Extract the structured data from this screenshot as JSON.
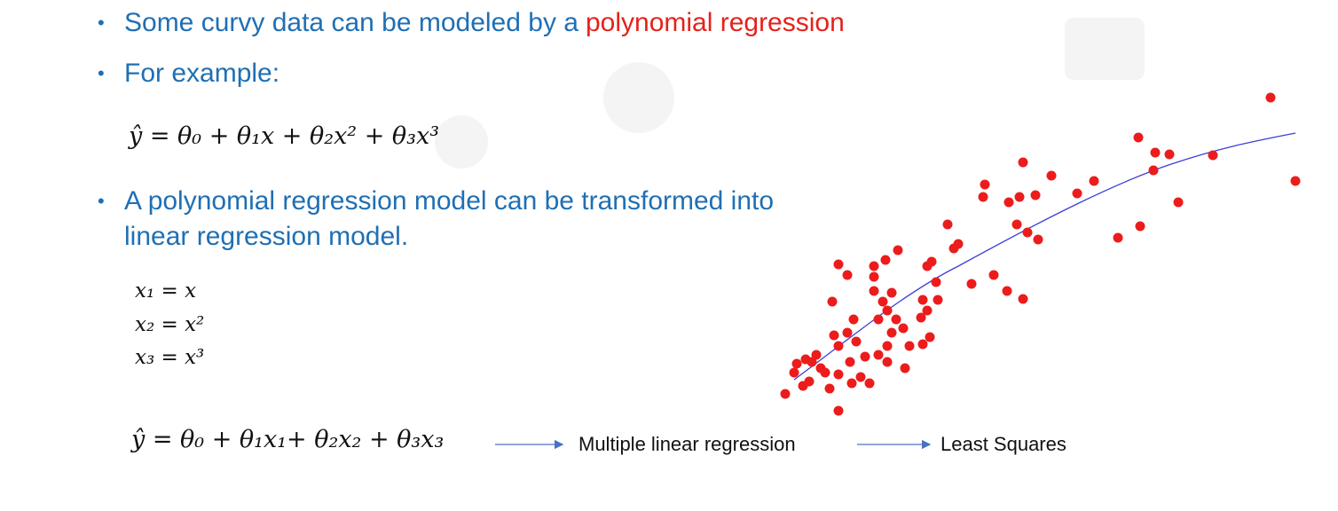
{
  "bullets": [
    {
      "text": "Some curvy data can be modeled by a",
      "highlight": "polynomial regression"
    },
    {
      "text": "For example:"
    },
    {
      "text": "A polynomial regression model can be transformed into",
      "text2": "linear regression model."
    }
  ],
  "formula1": "ŷ = θ₀ + θ₁x + θ₂x² +  θ₃x³",
  "substitutions": [
    "x₁ = x",
    "x₂ = x²",
    "x₃ = x³"
  ],
  "formula2": "ŷ = θ₀ + θ₁x₁+ θ₂x₂ + θ₃x₃",
  "flow": [
    "Multiple linear regression",
    "Least Squares"
  ]
}
